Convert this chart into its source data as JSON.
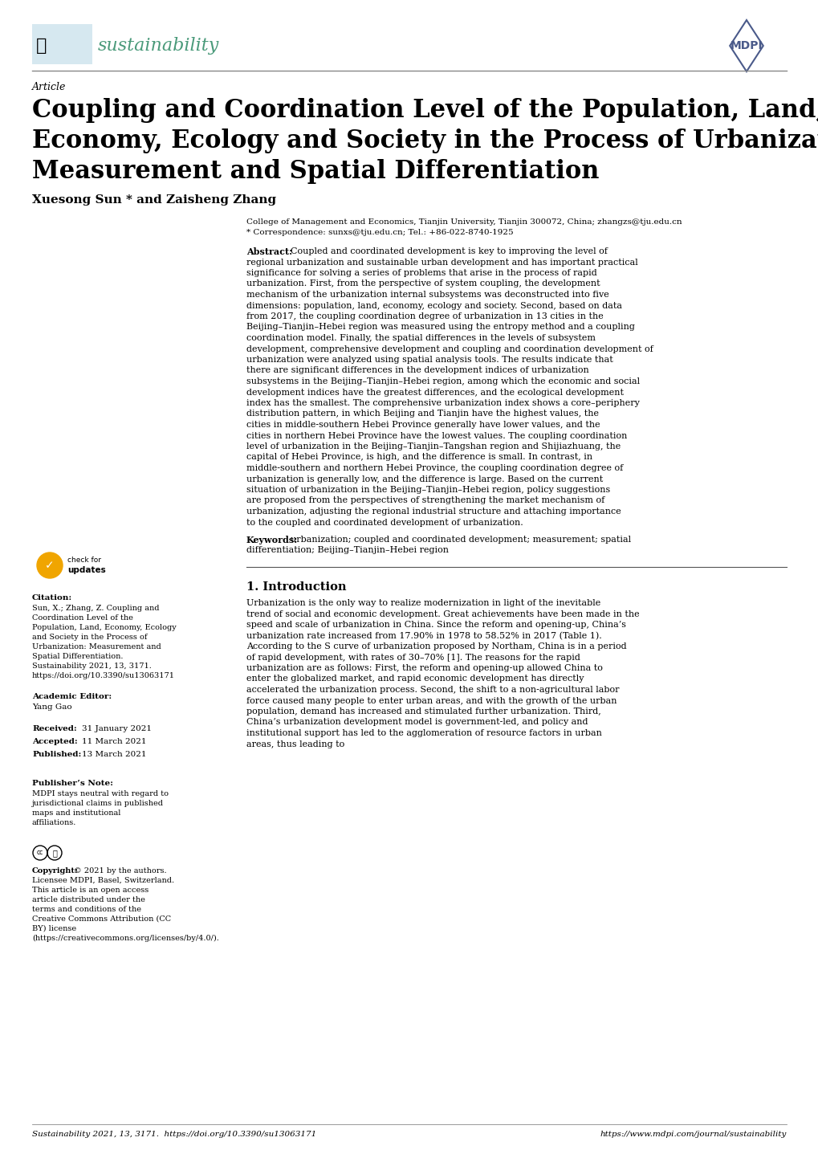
{
  "background_color": "#ffffff",
  "header_line_color": "#888888",
  "footer_line_color": "#888888",
  "journal_name_color": "#4a9a7a",
  "journal_logo_bg": "#d6e8f0",
  "mdpi_color": "#4a5a8a",
  "affiliation": "College of Management and Economics, Tianjin University, Tianjin 300072, China; zhangzs@tju.edu.cn",
  "correspondence": "* Correspondence: sunxs@tju.edu.cn; Tel.: +86-022-8740-1925",
  "abstract_text": "Coupled and coordinated development is key to improving the level of regional urbanization and sustainable urban development and has important practical significance for solving a series of problems that arise in the process of rapid urbanization.  First, from the perspective of system coupling, the development mechanism of the urbanization internal subsystems was deconstructed into five dimensions: population, land, economy, ecology and society. Second, based on data from 2017, the coupling coordination degree of urbanization in 13 cities in the Beijing–Tianjin–Hebei region was measured using the entropy method and a coupling coordination model.  Finally, the spatial differences in the levels of subsystem development, comprehensive development and coupling and coordination development of urbanization were analyzed using spatial analysis tools. The results indicate that there are significant differences in the development indices of urbanization subsystems in the Beijing–Tianjin–Hebei region, among which the economic and social development indices have the greatest differences, and the ecological development index has the smallest.  The comprehensive urbanization index shows a core–periphery distribution pattern, in which Beijing and Tianjin have the highest values, the cities in middle-southern Hebei Province generally have lower values, and the cities in northern Hebei Province have the lowest values. The coupling coordination level of urbanization in the Beijing–Tianjin–Tangshan region and Shijiazhuang, the capital of Hebei Province, is high, and the difference is small.  In contrast, in middle-southern and northern Hebei Province, the coupling coordination degree of urbanization is generally low, and the difference is large. Based on the current situation of urbanization in the Beijing–Tianjin–Hebei region, policy suggestions are proposed from the perspectives of strengthening the market mechanism of urbanization, adjusting the regional industrial structure and attaching importance to the coupled and coordinated development of urbanization.",
  "keywords_text": "urbanization; coupled and coordinated development; measurement; spatial differentiation; Beijing–Tianjin–Hebei region",
  "citation_text": "Sun, X.; Zhang, Z. Coupling and Coordination Level of the Population, Land, Economy, Ecology and Society in the Process of Urbanization: Measurement and Spatial Differentiation. Sustainability 2021, 13, 3171.  https://doi.org/10.3390/su13063171",
  "copyright_text": "© 2021 by the authors. Licensee MDPI, Basel, Switzerland. This article is an open access article distributed under the terms and conditions of the Creative Commons Attribution (CC BY) license (https://creativecommons.org/licenses/by/4.0/).",
  "intro_text": "Urbanization is the only way to realize modernization in light of the inevitable trend of social and economic development. Great achievements have been made in the speed and scale of urbanization in China. Since the reform and opening-up, China’s urbanization rate increased from 17.90% in 1978 to 58.52% in 2017 (Table 1).  According to the S curve of urbanization proposed by Northam, China is in a period of rapid development, with rates of 30–70% [1].  The reasons for the rapid urbanization are as follows: First, the reform and opening-up allowed China to enter the globalized market, and rapid economic development has directly accelerated the urbanization process. Second, the shift to a non-agricultural labor force caused many people to enter urban areas, and with the growth of the urban population, demand has increased and stimulated further urbanization. Third, China’s urbanization development model is government-led, and policy and institutional support has led to the agglomeration of resource factors in urban areas, thus leading to",
  "footer_left": "Sustainability 2021, 13, 3171.  https://doi.org/10.3390/su13063171",
  "footer_right": "https://www.mdpi.com/journal/sustainability"
}
